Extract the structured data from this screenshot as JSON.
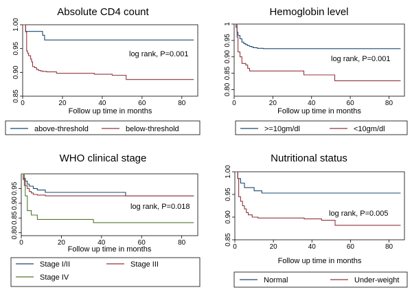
{
  "chart_data": [
    {
      "type": "line",
      "step": true,
      "title": "Absolute CD4 count",
      "xlabel": "Follow up  time in months",
      "ylabel": "",
      "xlim": [
        0,
        88
      ],
      "ylim": [
        0.85,
        1.0
      ],
      "xticks": [
        0,
        20,
        40,
        60,
        80
      ],
      "yticks": [
        0.85,
        0.9,
        0.95,
        1.0
      ],
      "ytick_labels": [
        "0.85",
        "0.90",
        "0.95",
        "1.00"
      ],
      "annotation": "log rank, P=0.001",
      "grid": false,
      "legend_position": "bottom",
      "series": [
        {
          "name": "above-threshold",
          "color": "#1a476f",
          "x": [
            0,
            1.5,
            6,
            10,
            11,
            86
          ],
          "y": [
            1.0,
            0.986,
            0.986,
            0.978,
            0.968,
            0.968
          ]
        },
        {
          "name": "below-threshold",
          "color": "#90353b",
          "x": [
            0,
            1.5,
            2,
            2.5,
            3,
            4,
            4.5,
            5,
            6,
            7,
            8,
            9,
            10,
            12,
            17,
            36,
            45,
            51,
            52,
            86
          ],
          "y": [
            1.0,
            0.985,
            0.945,
            0.94,
            0.935,
            0.928,
            0.922,
            0.912,
            0.91,
            0.906,
            0.904,
            0.903,
            0.902,
            0.901,
            0.898,
            0.896,
            0.894,
            0.894,
            0.885,
            0.885
          ]
        }
      ]
    },
    {
      "type": "line",
      "step": true,
      "title": "Hemoglobin level",
      "xlabel": "Follow up time in months",
      "ylabel": "",
      "xlim": [
        0,
        88
      ],
      "ylim": [
        0.78,
        1.0
      ],
      "xticks": [
        0,
        20,
        40,
        60,
        80
      ],
      "yticks": [
        0.8,
        0.85,
        0.9,
        0.95,
        1.0
      ],
      "ytick_labels": [
        "0.80",
        "0.85",
        "0.90",
        "0.95",
        "1"
      ],
      "annotation": "log rank, P=0.001",
      "grid": false,
      "legend_position": "bottom",
      "series": [
        {
          "name": ">=10gm/dl",
          "color": "#1a476f",
          "x": [
            0,
            1,
            1.5,
            2,
            3,
            4,
            5,
            6,
            7,
            8,
            9,
            10,
            12,
            15,
            86
          ],
          "y": [
            1.0,
            0.99,
            0.975,
            0.965,
            0.955,
            0.945,
            0.94,
            0.937,
            0.934,
            0.932,
            0.93,
            0.928,
            0.926,
            0.925,
            0.925
          ]
        },
        {
          "name": "<10gm/dl",
          "color": "#90353b",
          "x": [
            0,
            1.5,
            2,
            3,
            4,
            6,
            7,
            8,
            35,
            36,
            51,
            52,
            86
          ],
          "y": [
            1.0,
            0.96,
            0.915,
            0.9,
            0.88,
            0.875,
            0.865,
            0.857,
            0.857,
            0.845,
            0.845,
            0.827,
            0.827
          ]
        }
      ]
    },
    {
      "type": "line",
      "step": true,
      "title": "WHO clinical stage",
      "xlabel": "Follow up time in months",
      "ylabel": "",
      "xlim": [
        0,
        88
      ],
      "ylim": [
        0.79,
        1.0
      ],
      "xticks": [
        0,
        20,
        40,
        60,
        80
      ],
      "yticks": [
        0.8,
        0.85,
        0.9,
        0.95
      ],
      "ytick_labels": [
        "0.80",
        "0.85",
        "0.90",
        "0.95"
      ],
      "annotation": "log rank, P=0.018",
      "grid": false,
      "legend_position": "bottom",
      "series": [
        {
          "name": "Stage I/II",
          "color": "#1a476f",
          "x": [
            0,
            1,
            2,
            3,
            4,
            6,
            8,
            12,
            51,
            52,
            86
          ],
          "y": [
            1.0,
            0.985,
            0.975,
            0.965,
            0.958,
            0.95,
            0.945,
            0.937,
            0.937,
            0.925,
            0.925
          ]
        },
        {
          "name": "Stage III",
          "color": "#90353b",
          "x": [
            0,
            1,
            2,
            3,
            4,
            5,
            6,
            8,
            12,
            86
          ],
          "y": [
            1.0,
            0.98,
            0.96,
            0.95,
            0.94,
            0.935,
            0.93,
            0.928,
            0.925,
            0.925
          ]
        },
        {
          "name": "Stage IV",
          "color": "#55752f",
          "x": [
            0,
            1.5,
            2,
            3,
            5,
            8,
            35,
            36,
            86
          ],
          "y": [
            1.0,
            0.96,
            0.925,
            0.875,
            0.86,
            0.845,
            0.845,
            0.834,
            0.834
          ]
        }
      ]
    },
    {
      "type": "line",
      "step": true,
      "title": "Nutritional status",
      "xlabel": "Follow up time in months",
      "ylabel": "",
      "xlim": [
        0,
        88
      ],
      "ylim": [
        0.85,
        1.0
      ],
      "xticks": [
        0,
        20,
        40,
        60,
        80
      ],
      "yticks": [
        0.85,
        0.9,
        0.95,
        1.0
      ],
      "ytick_labels": [
        "0.85",
        "0.90",
        "0.95",
        "1.00"
      ],
      "annotation": "log rank, P=0.005",
      "grid": false,
      "legend_position": "bottom",
      "series": [
        {
          "name": "Normal",
          "color": "#1a476f",
          "x": [
            0,
            1.5,
            3,
            5,
            10,
            14,
            86
          ],
          "y": [
            1.0,
            0.985,
            0.975,
            0.965,
            0.958,
            0.953,
            0.953
          ]
        },
        {
          "name": "Under-weight",
          "color": "#90353b",
          "x": [
            0,
            1.5,
            2,
            3,
            4,
            5,
            6,
            7,
            9,
            12,
            36,
            45,
            51,
            52,
            86
          ],
          "y": [
            1.0,
            0.985,
            0.945,
            0.935,
            0.925,
            0.918,
            0.91,
            0.905,
            0.9,
            0.898,
            0.896,
            0.893,
            0.893,
            0.882,
            0.882
          ]
        }
      ]
    }
  ]
}
